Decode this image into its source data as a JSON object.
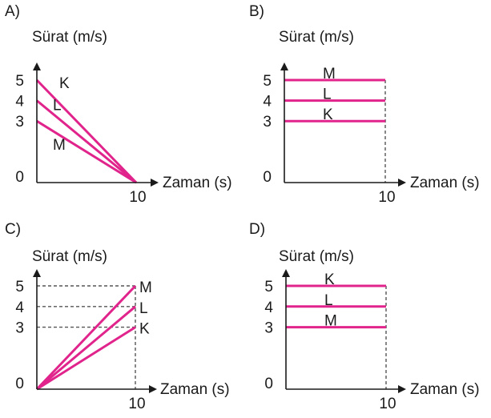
{
  "colors": {
    "series": "#e0248c",
    "axis": "#1a1a1a",
    "guide": "#555555"
  },
  "chart_data": [
    {
      "panel": "A)",
      "type": "line",
      "ylabel": "Sürat (m/s)",
      "xlabel": "Zaman (s)",
      "yticks": [
        "0",
        "3",
        "4",
        "5"
      ],
      "xticks": [
        "10"
      ],
      "ylim": [
        0,
        5
      ],
      "xlim": [
        0,
        10
      ],
      "grid": false,
      "guides": false,
      "series": [
        {
          "name": "K",
          "x": [
            0,
            10
          ],
          "y": [
            5,
            0
          ]
        },
        {
          "name": "L",
          "x": [
            0,
            10
          ],
          "y": [
            4,
            0
          ]
        },
        {
          "name": "M",
          "x": [
            0,
            10
          ],
          "y": [
            3,
            0
          ]
        }
      ]
    },
    {
      "panel": "B)",
      "type": "line",
      "ylabel": "Sürat (m/s)",
      "xlabel": "Zaman (s)",
      "yticks": [
        "0",
        "3",
        "4",
        "5"
      ],
      "xticks": [
        "10"
      ],
      "ylim": [
        0,
        5
      ],
      "xlim": [
        0,
        10
      ],
      "grid": false,
      "guides": "vertical-at-end",
      "series": [
        {
          "name": "M",
          "x": [
            0,
            10
          ],
          "y": [
            5,
            5
          ]
        },
        {
          "name": "L",
          "x": [
            0,
            10
          ],
          "y": [
            4,
            4
          ]
        },
        {
          "name": "K",
          "x": [
            0,
            10
          ],
          "y": [
            3,
            3
          ]
        }
      ]
    },
    {
      "panel": "C)",
      "type": "line",
      "ylabel": "Sürat (m/s)",
      "xlabel": "Zaman (s)",
      "yticks": [
        "0",
        "3",
        "4",
        "5"
      ],
      "xticks": [
        "10"
      ],
      "ylim": [
        0,
        5
      ],
      "xlim": [
        0,
        10
      ],
      "grid": false,
      "guides": "horizontal-and-vertical",
      "series": [
        {
          "name": "M",
          "x": [
            0,
            10
          ],
          "y": [
            0,
            5
          ]
        },
        {
          "name": "L",
          "x": [
            0,
            10
          ],
          "y": [
            0,
            4
          ]
        },
        {
          "name": "K",
          "x": [
            0,
            10
          ],
          "y": [
            0,
            3
          ]
        }
      ]
    },
    {
      "panel": "D)",
      "type": "line",
      "ylabel": "Sürat (m/s)",
      "xlabel": "Zaman (s)",
      "yticks": [
        "0",
        "3",
        "4",
        "5"
      ],
      "xticks": [
        "10"
      ],
      "ylim": [
        0,
        5
      ],
      "xlim": [
        0,
        10
      ],
      "grid": false,
      "guides": "vertical-at-end",
      "series": [
        {
          "name": "K",
          "x": [
            0,
            10
          ],
          "y": [
            5,
            5
          ]
        },
        {
          "name": "L",
          "x": [
            0,
            10
          ],
          "y": [
            4,
            4
          ]
        },
        {
          "name": "M",
          "x": [
            0,
            10
          ],
          "y": [
            3,
            3
          ]
        }
      ]
    }
  ]
}
